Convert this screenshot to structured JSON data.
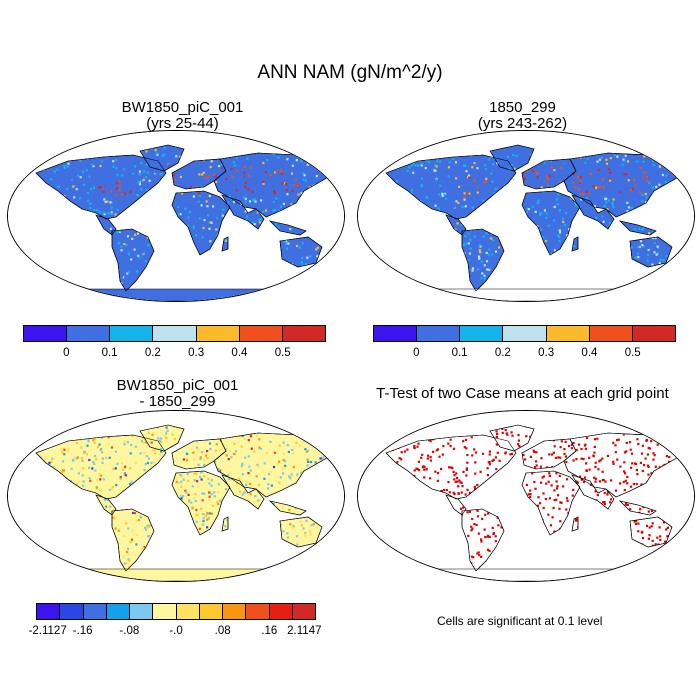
{
  "title": "ANN NAM (gN/m^2/y)",
  "panels": [
    {
      "id": "case1",
      "title_line1": "BW1850_piC_001",
      "title_line2": "(yrs 25-44)"
    },
    {
      "id": "case2",
      "title_line1": "1850_299",
      "title_line2": "(yrs 243-262)"
    },
    {
      "id": "diff",
      "title_line1": "BW1850_piC_001",
      "title_line2": "- 1850_299"
    },
    {
      "id": "ttest",
      "title_line1": "T-Test of two Case means at each grid point",
      "title_line2": ""
    }
  ],
  "colorbar_top": {
    "colors": [
      "#3c14f0",
      "#3f6fe0",
      "#14b4eb",
      "#bde2ee",
      "#fbb92b",
      "#f0501e",
      "#d22826"
    ],
    "tick_labels": [
      "0",
      "0.1",
      "0.2",
      "0.3",
      "0.4",
      "0.5"
    ]
  },
  "colorbar_diff": {
    "colors": [
      "#3c14f0",
      "#2c46e6",
      "#3f6fe0",
      "#14a0eb",
      "#7cc8ef",
      "#fff7a0",
      "#ffe164",
      "#fbc832",
      "#f89614",
      "#f0501e",
      "#e61e14",
      "#d22826"
    ],
    "tick_labels": [
      "-2.1127",
      "-.16",
      "-.08",
      "-.0",
      ".08",
      ".16",
      "2.1147"
    ]
  },
  "note": "Cells are significant at 0.1 level",
  "colors": {
    "ocean": "#ffffff",
    "land_base": "#3f6fe0",
    "diff_base": "#fff7a0",
    "ttest_mark": "#e00000"
  }
}
